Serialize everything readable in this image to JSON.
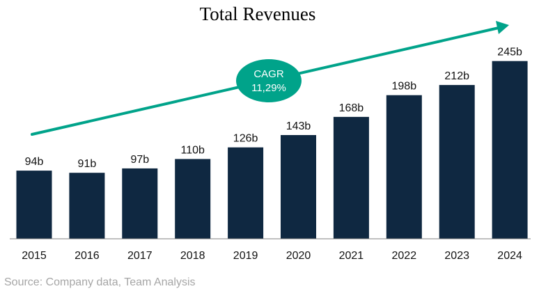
{
  "chart_data": {
    "type": "bar",
    "title": "Total Revenues",
    "categories": [
      "2015",
      "2016",
      "2017",
      "2018",
      "2019",
      "2020",
      "2021",
      "2022",
      "2023",
      "2024"
    ],
    "values": [
      94,
      91,
      97,
      110,
      126,
      143,
      168,
      198,
      212,
      245
    ],
    "value_labels": [
      "94b",
      "91b",
      "97b",
      "110b",
      "126b",
      "143b",
      "168b",
      "198b",
      "212b",
      "245b"
    ],
    "ylim": [
      0,
      262
    ],
    "grid": false,
    "legend": "none",
    "annotation": {
      "label": "CAGR",
      "value": "11,29%"
    }
  },
  "source": "Source: Company data,  Team Analysis",
  "colors": {
    "bar": "#0f2841",
    "arrow": "#00a38a",
    "cagr_badge": "#00a38a",
    "source_text": "#a6a6a6",
    "baseline": "#808080"
  }
}
